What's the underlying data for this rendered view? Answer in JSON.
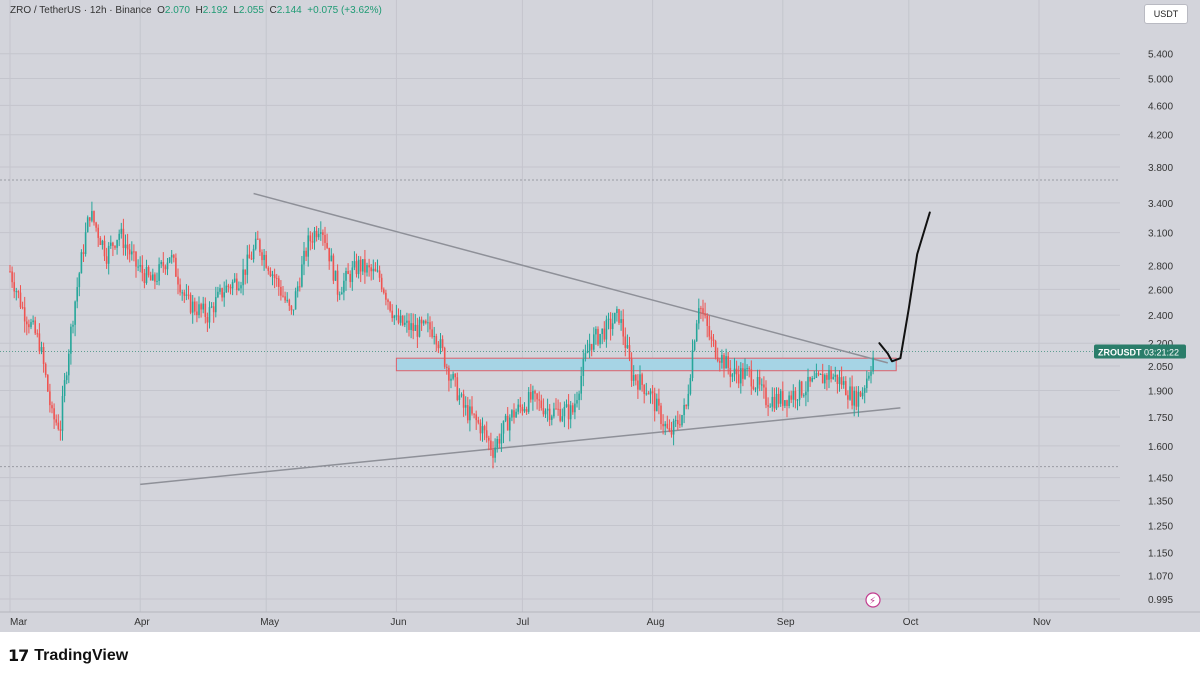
{
  "header": {
    "symbol": "ZRO / TetherUS · 12h · Binance",
    "open_label": "O",
    "open": "2.070",
    "high_label": "H",
    "high": "2.192",
    "low_label": "L",
    "low": "2.055",
    "close_label": "C",
    "close": "2.144",
    "change": "+0.075 (+3.62%)"
  },
  "currency_button": "USDT",
  "price_tag": {
    "symbol": "ZROUSDT",
    "countdown": "03:21:22"
  },
  "brand": "TradingView",
  "colors": {
    "up": "#26a69a",
    "down": "#ef5350",
    "zone_fill": "#a6d4e5",
    "zone_border": "#e0606a",
    "trendline": "#8e9098",
    "projection": "#111111",
    "tag_bg": "#2a7d6a"
  },
  "chart_data": {
    "type": "candlestick",
    "timeframe": "12h",
    "scale": "log",
    "y_tick_labels": [
      "5.400",
      "5.000",
      "4.600",
      "4.200",
      "3.800",
      "3.400",
      "3.100",
      "2.800",
      "2.600",
      "2.400",
      "2.200",
      "2.050",
      "1.900",
      "1.750",
      "1.600",
      "1.450",
      "1.350",
      "1.250",
      "1.150",
      "1.070",
      "0.995"
    ],
    "x_tick_labels": [
      "Mar",
      "Apr",
      "May",
      "Jun",
      "Jul",
      "Aug",
      "Sep",
      "Oct",
      "Nov"
    ],
    "close_price": 2.144,
    "ohlc_last": {
      "open": 2.07,
      "high": 2.192,
      "low": 2.055,
      "close": 2.144
    },
    "range_high": 3.65,
    "range_low": 1.5,
    "close_path": [
      {
        "date": "2024-03-01",
        "close": 2.75
      },
      {
        "date": "2024-03-04",
        "close": 2.45
      },
      {
        "date": "2024-03-08",
        "close": 2.2
      },
      {
        "date": "2024-03-11",
        "close": 1.75
      },
      {
        "date": "2024-03-13",
        "close": 1.7
      },
      {
        "date": "2024-03-16",
        "close": 2.4
      },
      {
        "date": "2024-03-20",
        "close": 3.3
      },
      {
        "date": "2024-03-24",
        "close": 2.9
      },
      {
        "date": "2024-03-27",
        "close": 3.1
      },
      {
        "date": "2024-03-31",
        "close": 2.8
      },
      {
        "date": "2024-04-04",
        "close": 2.65
      },
      {
        "date": "2024-04-08",
        "close": 2.9
      },
      {
        "date": "2024-04-12",
        "close": 2.5
      },
      {
        "date": "2024-04-17",
        "close": 2.4
      },
      {
        "date": "2024-04-21",
        "close": 2.6
      },
      {
        "date": "2024-04-25",
        "close": 2.7
      },
      {
        "date": "2024-04-29",
        "close": 3.0
      },
      {
        "date": "2024-05-03",
        "close": 2.7
      },
      {
        "date": "2024-05-07",
        "close": 2.4
      },
      {
        "date": "2024-05-11",
        "close": 3.0
      },
      {
        "date": "2024-05-14",
        "close": 3.2
      },
      {
        "date": "2024-05-18",
        "close": 2.6
      },
      {
        "date": "2024-05-23",
        "close": 2.8
      },
      {
        "date": "2024-05-28",
        "close": 2.7
      },
      {
        "date": "2024-06-01",
        "close": 2.35
      },
      {
        "date": "2024-06-05",
        "close": 2.3
      },
      {
        "date": "2024-06-10",
        "close": 2.3
      },
      {
        "date": "2024-06-13",
        "close": 2.05
      },
      {
        "date": "2024-06-17",
        "close": 1.8
      },
      {
        "date": "2024-06-21",
        "close": 1.7
      },
      {
        "date": "2024-06-24",
        "close": 1.58
      },
      {
        "date": "2024-06-28",
        "close": 1.75
      },
      {
        "date": "2024-07-03",
        "close": 1.85
      },
      {
        "date": "2024-07-08",
        "close": 1.78
      },
      {
        "date": "2024-07-13",
        "close": 1.78
      },
      {
        "date": "2024-07-17",
        "close": 2.2
      },
      {
        "date": "2024-07-21",
        "close": 2.3
      },
      {
        "date": "2024-07-24",
        "close": 2.4
      },
      {
        "date": "2024-07-27",
        "close": 2.0
      },
      {
        "date": "2024-07-31",
        "close": 1.9
      },
      {
        "date": "2024-08-05",
        "close": 1.65
      },
      {
        "date": "2024-08-09",
        "close": 1.8
      },
      {
        "date": "2024-08-12",
        "close": 2.5
      },
      {
        "date": "2024-08-15",
        "close": 2.2
      },
      {
        "date": "2024-08-20",
        "close": 2.0
      },
      {
        "date": "2024-08-24",
        "close": 2.0
      },
      {
        "date": "2024-08-28",
        "close": 1.85
      },
      {
        "date": "2024-09-01",
        "close": 1.85
      },
      {
        "date": "2024-09-05",
        "close": 1.9
      },
      {
        "date": "2024-09-09",
        "close": 1.95
      },
      {
        "date": "2024-09-12",
        "close": 2.0
      },
      {
        "date": "2024-09-15",
        "close": 1.95
      },
      {
        "date": "2024-09-18",
        "close": 1.85
      },
      {
        "date": "2024-09-20",
        "close": 1.9
      },
      {
        "date": "2024-09-23",
        "close": 2.144
      }
    ],
    "drawings": {
      "descending_trendline": [
        {
          "date": "2024-04-28",
          "price": 3.5
        },
        {
          "date": "2024-09-26",
          "price": 2.07
        }
      ],
      "ascending_trendline": [
        {
          "date": "2024-04-01",
          "price": 1.42
        },
        {
          "date": "2024-09-29",
          "price": 1.8
        }
      ],
      "support_zone": {
        "from": "2024-06-01",
        "to": "2024-09-28",
        "top": 2.1,
        "bottom": 2.02
      },
      "resistance_level": 3.65,
      "support_level": 1.5,
      "projection_path": [
        {
          "date": "2024-09-24",
          "price": 2.2
        },
        {
          "date": "2024-09-26",
          "price": 2.13
        },
        {
          "date": "2024-09-27",
          "price": 2.08
        },
        {
          "date": "2024-09-29",
          "price": 2.1
        },
        {
          "date": "2024-10-01",
          "price": 2.45
        },
        {
          "date": "2024-10-03",
          "price": 2.9
        },
        {
          "date": "2024-10-06",
          "price": 3.3
        }
      ]
    }
  }
}
